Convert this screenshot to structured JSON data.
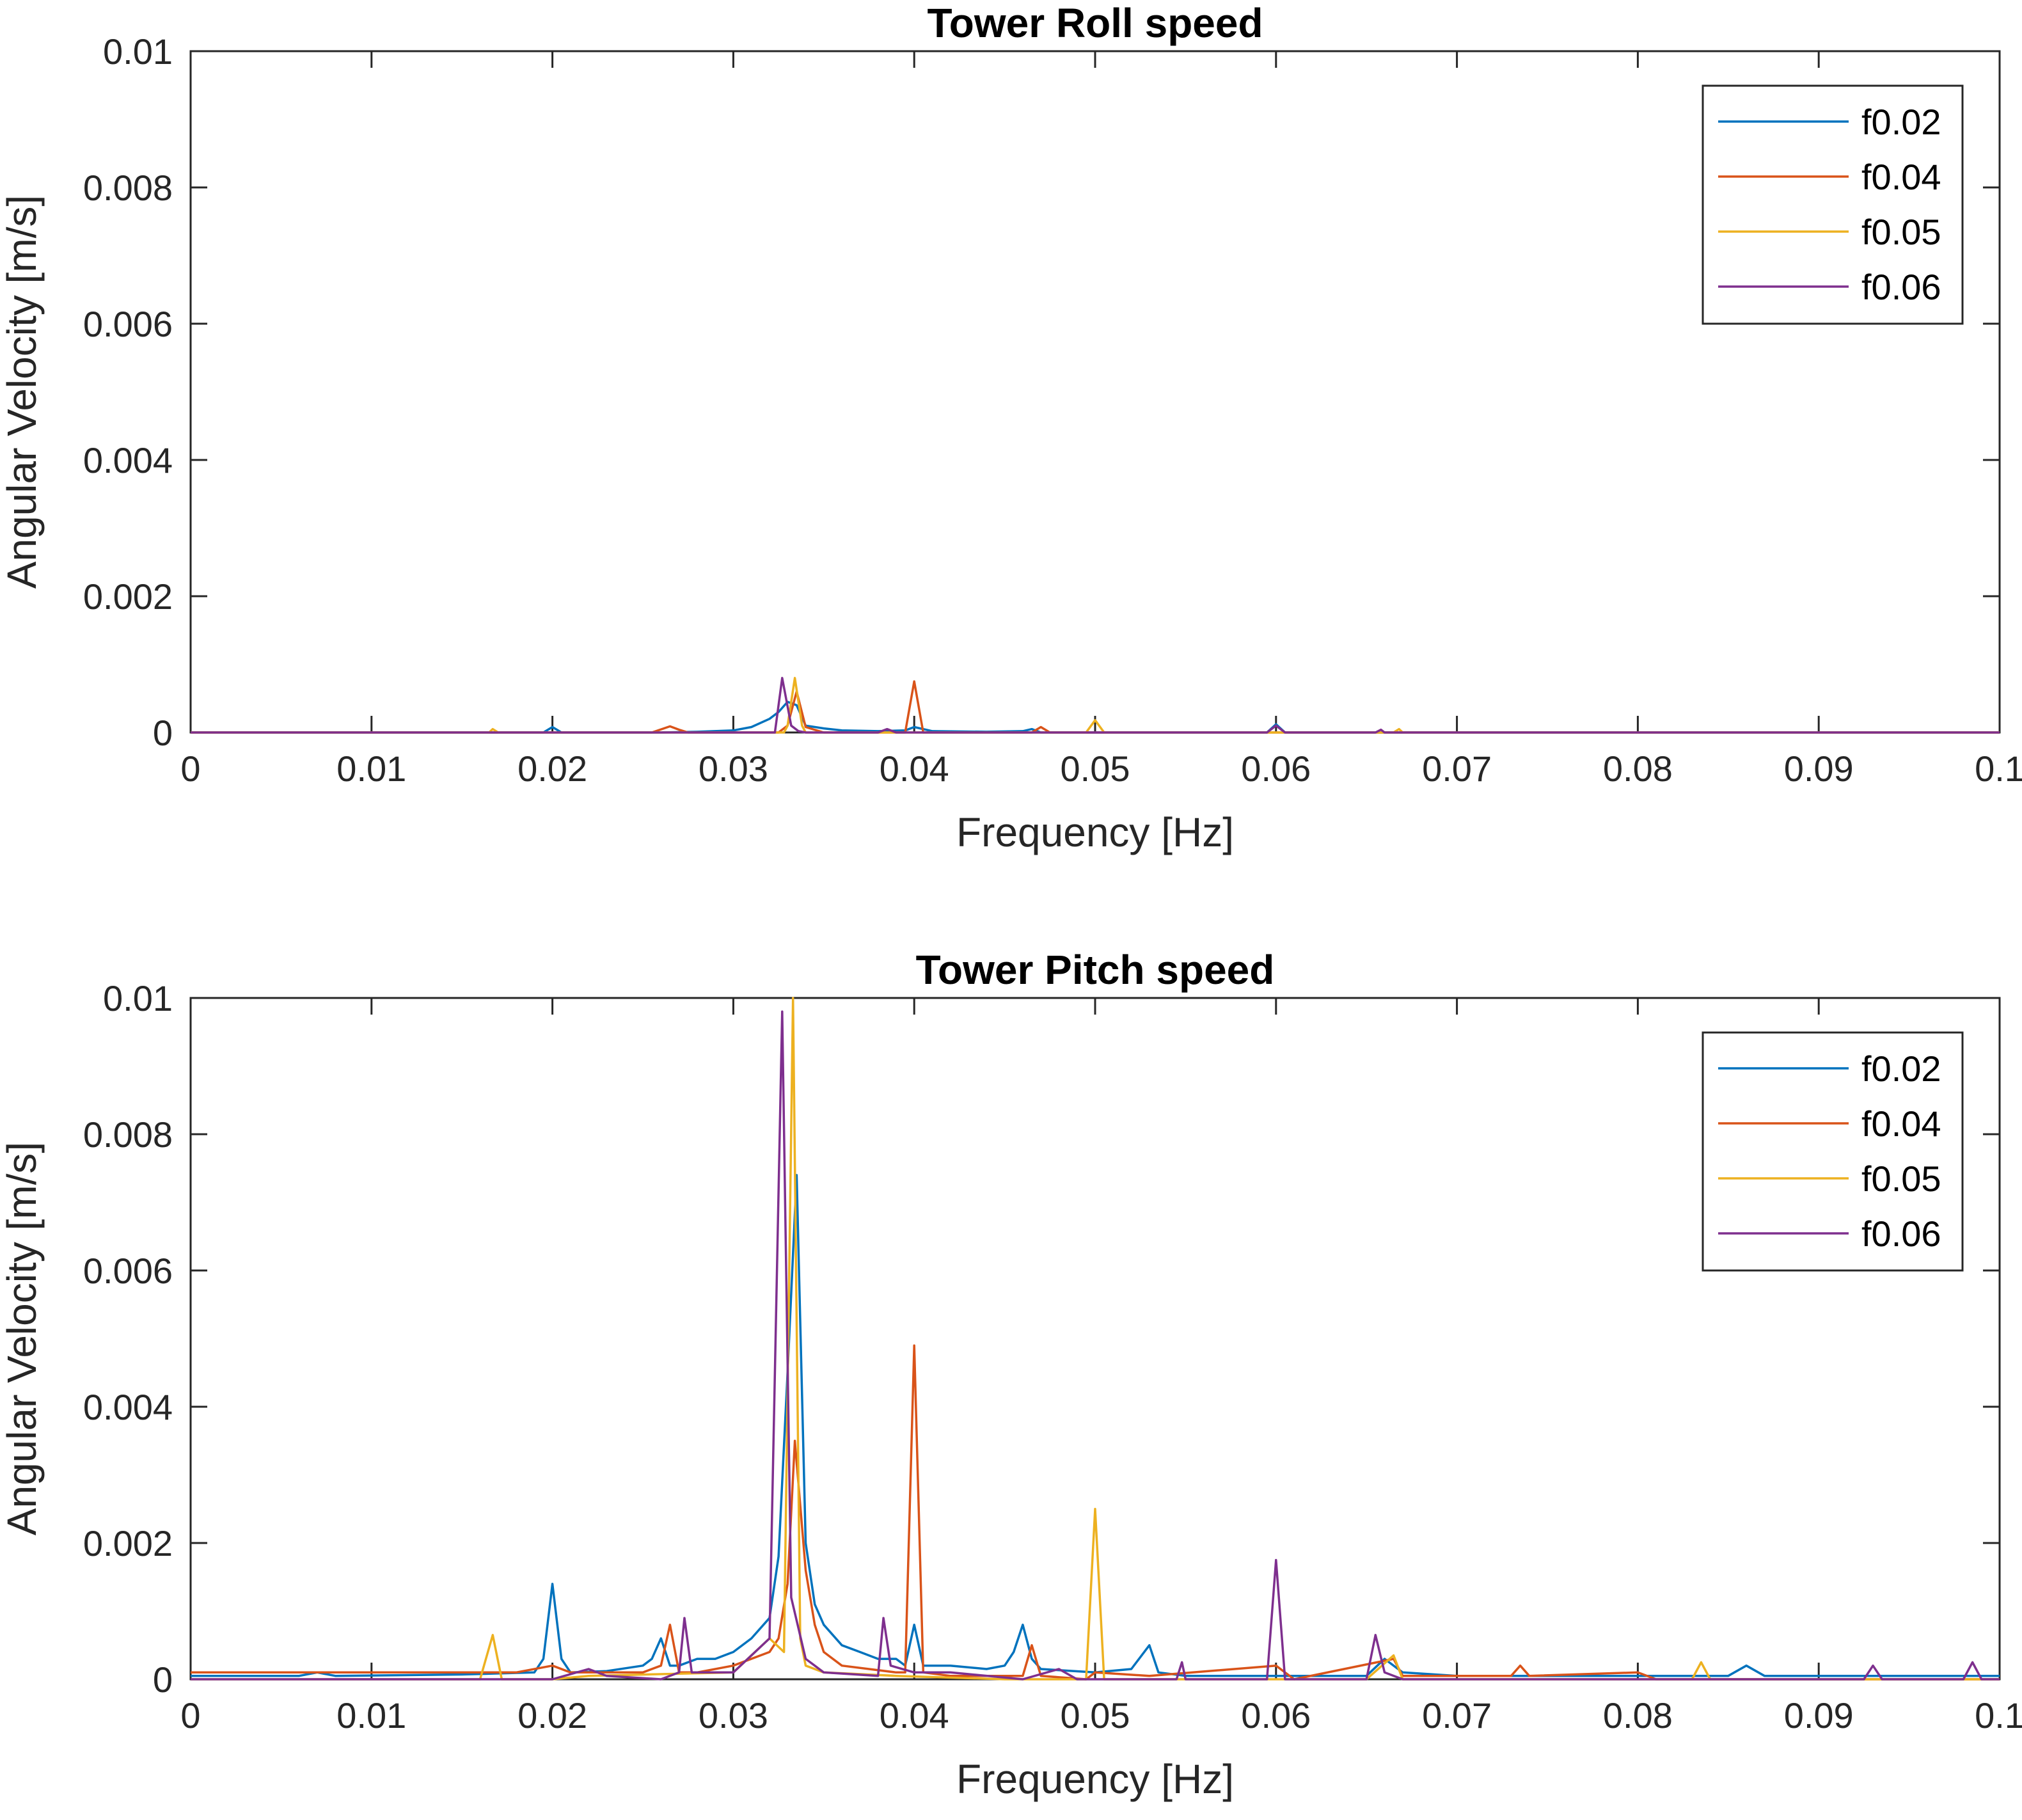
{
  "chart_data": [
    {
      "type": "line",
      "title": "Tower Roll speed",
      "xlabel": "Frequency [Hz]",
      "ylabel": "Angular Velocity [m/s]",
      "xlim": [
        0,
        0.1
      ],
      "ylim": [
        0,
        0.01
      ],
      "xticks": [
        "0",
        "0.01",
        "0.02",
        "0.03",
        "0.04",
        "0.05",
        "0.06",
        "0.07",
        "0.08",
        "0.09",
        "0.1"
      ],
      "yticks": [
        "0",
        "0.002",
        "0.004",
        "0.006",
        "0.008",
        "0.01"
      ],
      "grid": false,
      "legend_position": "top-right",
      "series": [
        {
          "name": "f0.02",
          "color": "#0072BD",
          "points": [
            [
              0,
              0
            ],
            [
              0.0195,
              0
            ],
            [
              0.02,
              8e-05
            ],
            [
              0.0205,
              0
            ],
            [
              0.026,
              0
            ],
            [
              0.028,
              1e-05
            ],
            [
              0.03,
              3e-05
            ],
            [
              0.031,
              8e-05
            ],
            [
              0.032,
              0.0002
            ],
            [
              0.0325,
              0.0003
            ],
            [
              0.033,
              0.00045
            ],
            [
              0.0335,
              0.0004
            ],
            [
              0.034,
              0.0001
            ],
            [
              0.035,
              6e-05
            ],
            [
              0.036,
              3e-05
            ],
            [
              0.038,
              2e-05
            ],
            [
              0.0395,
              3e-05
            ],
            [
              0.04,
              8e-05
            ],
            [
              0.041,
              2e-05
            ],
            [
              0.044,
              1e-05
            ],
            [
              0.046,
              2e-05
            ],
            [
              0.0465,
              5e-05
            ],
            [
              0.047,
              0
            ],
            [
              0.0595,
              0
            ],
            [
              0.06,
              0.00012
            ],
            [
              0.0605,
              0
            ],
            [
              0.1,
              0
            ]
          ]
        },
        {
          "name": "f0.04",
          "color": "#D95319",
          "points": [
            [
              0,
              0
            ],
            [
              0.0255,
              0
            ],
            [
              0.0265,
              9e-05
            ],
            [
              0.027,
              4e-05
            ],
            [
              0.0275,
              0
            ],
            [
              0.0325,
              0
            ],
            [
              0.033,
              0.0001
            ],
            [
              0.0335,
              0.0006
            ],
            [
              0.034,
              8e-05
            ],
            [
              0.035,
              0
            ],
            [
              0.0395,
              0
            ],
            [
              0.04,
              0.00075
            ],
            [
              0.0405,
              0
            ],
            [
              0.0465,
              0
            ],
            [
              0.047,
              8e-05
            ],
            [
              0.0475,
              0
            ],
            [
              0.1,
              0
            ]
          ]
        },
        {
          "name": "f0.05",
          "color": "#EDB120",
          "points": [
            [
              0,
              0
            ],
            [
              0.0165,
              0
            ],
            [
              0.0167,
              5e-05
            ],
            [
              0.017,
              0
            ],
            [
              0.0328,
              0
            ],
            [
              0.033,
              0.0001
            ],
            [
              0.0334,
              0.0008
            ],
            [
              0.0338,
              0.0001
            ],
            [
              0.034,
              0
            ],
            [
              0.0495,
              0
            ],
            [
              0.05,
              0.00018
            ],
            [
              0.0505,
              0
            ],
            [
              0.0665,
              0
            ],
            [
              0.0668,
              5e-05
            ],
            [
              0.067,
              0
            ],
            [
              0.1,
              0
            ]
          ]
        },
        {
          "name": "f0.06",
          "color": "#7E2F8E",
          "points": [
            [
              0,
              0
            ],
            [
              0.0323,
              0
            ],
            [
              0.0327,
              0.0008
            ],
            [
              0.0332,
              0.0001
            ],
            [
              0.0336,
              2e-05
            ],
            [
              0.034,
              0
            ],
            [
              0.038,
              0
            ],
            [
              0.0385,
              5e-05
            ],
            [
              0.039,
              0
            ],
            [
              0.0595,
              0
            ],
            [
              0.06,
              0.0001
            ],
            [
              0.0605,
              0
            ],
            [
              0.0655,
              0
            ],
            [
              0.0658,
              4e-05
            ],
            [
              0.066,
              0
            ],
            [
              0.1,
              0
            ]
          ]
        }
      ]
    },
    {
      "type": "line",
      "title": "Tower Pitch speed",
      "xlabel": "Frequency [Hz]",
      "ylabel": "Angular Velocity [m/s]",
      "xlim": [
        0,
        0.1
      ],
      "ylim": [
        0,
        0.01
      ],
      "xticks": [
        "0",
        "0.01",
        "0.02",
        "0.03",
        "0.04",
        "0.05",
        "0.06",
        "0.07",
        "0.08",
        "0.09",
        "0.1"
      ],
      "yticks": [
        "0",
        "0.002",
        "0.004",
        "0.006",
        "0.008",
        "0.01"
      ],
      "grid": false,
      "legend_position": "top-right",
      "series": [
        {
          "name": "f0.02",
          "color": "#0072BD",
          "points": [
            [
              0,
              5e-05
            ],
            [
              0.006,
              5e-05
            ],
            [
              0.007,
              0.0001
            ],
            [
              0.008,
              5e-05
            ],
            [
              0.015,
              7e-05
            ],
            [
              0.019,
              0.0001
            ],
            [
              0.0195,
              0.0003
            ],
            [
              0.02,
              0.0014
            ],
            [
              0.0205,
              0.0003
            ],
            [
              0.021,
              0.0001
            ],
            [
              0.023,
              0.00012
            ],
            [
              0.025,
              0.0002
            ],
            [
              0.0255,
              0.0003
            ],
            [
              0.026,
              0.0006
            ],
            [
              0.0265,
              0.0002
            ],
            [
              0.027,
              0.0002
            ],
            [
              0.028,
              0.0003
            ],
            [
              0.029,
              0.0003
            ],
            [
              0.03,
              0.0004
            ],
            [
              0.031,
              0.0006
            ],
            [
              0.032,
              0.0009
            ],
            [
              0.0325,
              0.0018
            ],
            [
              0.033,
              0.0045
            ],
            [
              0.0335,
              0.0074
            ],
            [
              0.034,
              0.002
            ],
            [
              0.0345,
              0.0011
            ],
            [
              0.035,
              0.0008
            ],
            [
              0.036,
              0.0005
            ],
            [
              0.037,
              0.0004
            ],
            [
              0.038,
              0.0003
            ],
            [
              0.039,
              0.0003
            ],
            [
              0.0395,
              0.0002
            ],
            [
              0.04,
              0.0008
            ],
            [
              0.0405,
              0.0002
            ],
            [
              0.042,
              0.0002
            ],
            [
              0.044,
              0.00015
            ],
            [
              0.045,
              0.0002
            ],
            [
              0.0455,
              0.0004
            ],
            [
              0.046,
              0.0008
            ],
            [
              0.0465,
              0.0003
            ],
            [
              0.047,
              0.00015
            ],
            [
              0.05,
              0.0001
            ],
            [
              0.052,
              0.00015
            ],
            [
              0.053,
              0.0005
            ],
            [
              0.0535,
              0.0001
            ],
            [
              0.055,
              5e-05
            ],
            [
              0.06,
              5e-05
            ],
            [
              0.065,
              5e-05
            ],
            [
              0.066,
              0.0003
            ],
            [
              0.067,
              0.0001
            ],
            [
              0.07,
              5e-05
            ],
            [
              0.085,
              5e-05
            ],
            [
              0.086,
              0.0002
            ],
            [
              0.087,
              5e-05
            ],
            [
              0.1,
              5e-05
            ]
          ]
        },
        {
          "name": "f0.04",
          "color": "#D95319",
          "points": [
            [
              0,
              0.0001
            ],
            [
              0.018,
              0.0001
            ],
            [
              0.02,
              0.0002
            ],
            [
              0.021,
              0.0001
            ],
            [
              0.025,
              0.0001
            ],
            [
              0.026,
              0.0002
            ],
            [
              0.0265,
              0.0008
            ],
            [
              0.027,
              0.0001
            ],
            [
              0.028,
              0.0001
            ],
            [
              0.03,
              0.0002
            ],
            [
              0.032,
              0.0004
            ],
            [
              0.0325,
              0.0006
            ],
            [
              0.033,
              0.0014
            ],
            [
              0.0334,
              0.0035
            ],
            [
              0.034,
              0.0016
            ],
            [
              0.0345,
              0.0008
            ],
            [
              0.035,
              0.0004
            ],
            [
              0.036,
              0.0002
            ],
            [
              0.039,
              0.0001
            ],
            [
              0.0395,
              0.0001
            ],
            [
              0.04,
              0.0049
            ],
            [
              0.0405,
              0.0001
            ],
            [
              0.042,
              5e-05
            ],
            [
              0.046,
              5e-05
            ],
            [
              0.0465,
              0.0005
            ],
            [
              0.047,
              5e-05
            ],
            [
              0.0495,
              0
            ],
            [
              0.05,
              0.0001
            ],
            [
              0.053,
              5e-05
            ],
            [
              0.06,
              0.0002
            ],
            [
              0.061,
              0
            ],
            [
              0.0665,
              0.0003
            ],
            [
              0.067,
              5e-05
            ],
            [
              0.073,
              5e-05
            ],
            [
              0.0735,
              0.0002
            ],
            [
              0.074,
              5e-05
            ],
            [
              0.08,
              0.0001
            ],
            [
              0.081,
              0
            ],
            [
              0.1,
              0
            ]
          ]
        },
        {
          "name": "f0.05",
          "color": "#EDB120",
          "points": [
            [
              0,
              0
            ],
            [
              0.016,
              0
            ],
            [
              0.0167,
              0.00065
            ],
            [
              0.0172,
              0
            ],
            [
              0.02,
              0
            ],
            [
              0.022,
              5e-05
            ],
            [
              0.03,
              0.0001
            ],
            [
              0.032,
              0.0006
            ],
            [
              0.0328,
              0.0004
            ],
            [
              0.0333,
              0.01
            ],
            [
              0.0337,
              0.0006
            ],
            [
              0.034,
              0.0002
            ],
            [
              0.035,
              0.0001
            ],
            [
              0.039,
              5e-05
            ],
            [
              0.045,
              0
            ],
            [
              0.0495,
              0
            ],
            [
              0.05,
              0.0025
            ],
            [
              0.0505,
              0
            ],
            [
              0.065,
              0
            ],
            [
              0.0665,
              0.00035
            ],
            [
              0.067,
              0
            ],
            [
              0.083,
              0
            ],
            [
              0.0835,
              0.00025
            ],
            [
              0.084,
              0
            ],
            [
              0.1,
              0
            ]
          ]
        },
        {
          "name": "f0.06",
          "color": "#7E2F8E",
          "points": [
            [
              0,
              0
            ],
            [
              0.02,
              0
            ],
            [
              0.022,
              0.00015
            ],
            [
              0.023,
              5e-05
            ],
            [
              0.026,
              0
            ],
            [
              0.027,
              0.0001
            ],
            [
              0.0273,
              0.0009
            ],
            [
              0.0277,
              0.0001
            ],
            [
              0.03,
              0.0001
            ],
            [
              0.032,
              0.0006
            ],
            [
              0.0327,
              0.0098
            ],
            [
              0.0332,
              0.0012
            ],
            [
              0.034,
              0.0003
            ],
            [
              0.035,
              0.0001
            ],
            [
              0.038,
              5e-05
            ],
            [
              0.0383,
              0.0009
            ],
            [
              0.0387,
              0.0002
            ],
            [
              0.04,
              0.0001
            ],
            [
              0.042,
              0.0001
            ],
            [
              0.046,
              0
            ],
            [
              0.048,
              0.00015
            ],
            [
              0.049,
              0
            ],
            [
              0.0545,
              0
            ],
            [
              0.0548,
              0.00025
            ],
            [
              0.055,
              0
            ],
            [
              0.0595,
              0
            ],
            [
              0.06,
              0.00175
            ],
            [
              0.0605,
              0
            ],
            [
              0.065,
              0
            ],
            [
              0.0655,
              0.00065
            ],
            [
              0.066,
              0.0001
            ],
            [
              0.067,
              0
            ],
            [
              0.0925,
              0
            ],
            [
              0.093,
              0.0002
            ],
            [
              0.0935,
              0
            ],
            [
              0.098,
              0
            ],
            [
              0.0985,
              0.00025
            ],
            [
              0.099,
              0
            ],
            [
              0.1,
              0
            ]
          ]
        }
      ]
    }
  ]
}
